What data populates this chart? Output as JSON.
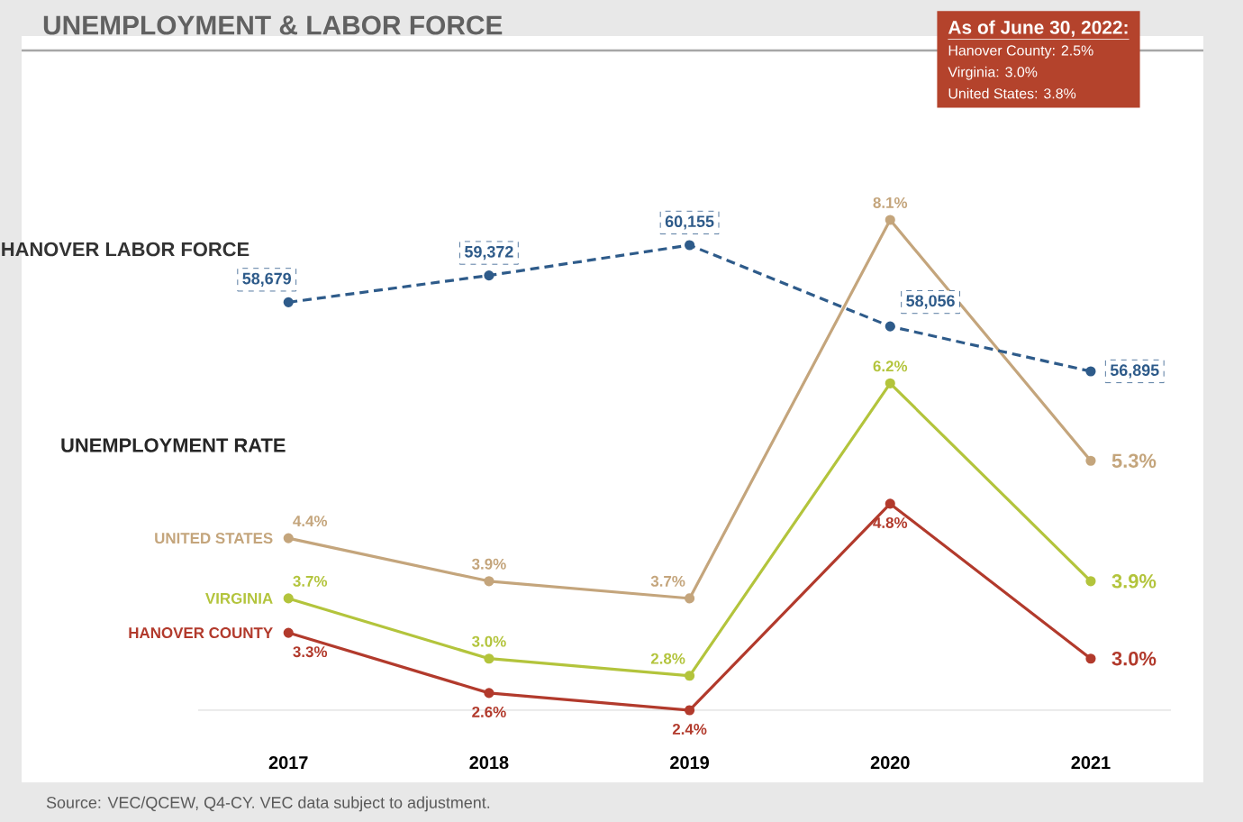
{
  "chart_data": {
    "type": "line",
    "title": "UNEMPLOYMENT & LABOR FORCE",
    "categories": [
      "2017",
      "2018",
      "2019",
      "2020",
      "2021"
    ],
    "series": [
      {
        "name": "HANOVER LABOR FORCE",
        "color": "#2e5b8a",
        "axis": "y2",
        "line_style": "dashed",
        "values": [
          58679,
          59372,
          60155,
          58056,
          56895
        ],
        "value_labels": [
          "58,679",
          "59,372",
          "60,155",
          "58,056",
          "56,895"
        ]
      },
      {
        "name": "UNITED STATES",
        "color": "#c4a57c",
        "values": [
          4.4,
          3.9,
          3.7,
          8.1,
          5.3
        ],
        "value_labels": [
          "4.4%",
          "3.9%",
          "3.7%",
          "8.1%",
          "5.3%"
        ]
      },
      {
        "name": "VIRGINIA",
        "color": "#b3c43c",
        "values": [
          3.7,
          3.0,
          2.8,
          6.2,
          3.9
        ],
        "value_labels": [
          "3.7%",
          "3.0%",
          "2.8%",
          "6.2%",
          "3.9%"
        ]
      },
      {
        "name": "HANOVER COUNTY",
        "color": "#b23a2c",
        "values": [
          3.3,
          2.6,
          2.4,
          4.8,
          3.0
        ],
        "value_labels": [
          "3.3%",
          "2.6%",
          "2.4%",
          "4.8%",
          "3.0%"
        ]
      }
    ],
    "tick_labels": "x",
    "marker": "circle",
    "line_style": "solid",
    "annotations": [
      "UNEMPLOYMENT RATE",
      "As of June 30, 2022:",
      "Hanover County: 2.5%",
      "Virginia: 3.0%",
      "United States: 3.8%",
      "Source: VEC/QCEW, Q4-CY. VEC data subject to adjustment."
    ]
  }
}
